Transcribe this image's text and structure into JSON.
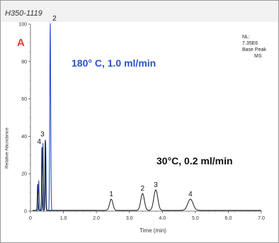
{
  "figure_id": "H350-1119",
  "panel_letter": "A",
  "info": {
    "nl_label": "NL:",
    "nl_value": "7.35E6",
    "peak_type": "Base Peak",
    "detector": "MS"
  },
  "conditions": {
    "fast": "180° C, 1.0 ml/min",
    "slow": "30°C, 0.2 ml/min"
  },
  "colors": {
    "fast": "#2a52c8",
    "slow": "#1a1a1a",
    "panel": "#e23a2a"
  },
  "chart_data": {
    "type": "line",
    "xlabel": "Time (min)",
    "ylabel": "Relative Abundance",
    "xlim": [
      0,
      7.0
    ],
    "ylim": [
      0,
      100
    ],
    "x_ticks": [
      "0",
      "1.0",
      "2.0",
      "3.0",
      "4.0",
      "5.0",
      "6.0",
      "7.0"
    ],
    "y_ticks": [
      "0",
      "20",
      "40",
      "60",
      "80",
      "100"
    ],
    "grid": false,
    "series": [
      {
        "condition": "180° C, 1.0 ml/min",
        "color": "#2a52c8",
        "peaks": [
          {
            "label": "",
            "time": 0.25,
            "height": 16,
            "width": 0.012
          },
          {
            "label": "",
            "time": 0.38,
            "height": 36,
            "width": 0.012
          },
          {
            "label": "",
            "time": 0.46,
            "height": 37,
            "width": 0.012
          },
          {
            "label": "2",
            "time": 0.6,
            "height": 100,
            "width": 0.014
          }
        ]
      },
      {
        "condition": "30°C, 0.2 ml/min",
        "color": "#1a1a1a",
        "peaks": [
          {
            "label": "",
            "time": 0.22,
            "height": 14,
            "width": 0.012
          },
          {
            "label": "4",
            "time": 0.35,
            "height": 34,
            "width": 0.012
          },
          {
            "label": "3",
            "time": 0.45,
            "height": 38,
            "width": 0.012
          },
          {
            "label": "1",
            "time": 2.45,
            "height": 6,
            "width": 0.05
          },
          {
            "label": "2",
            "time": 3.4,
            "height": 9,
            "width": 0.055
          },
          {
            "label": "3",
            "time": 3.8,
            "height": 11,
            "width": 0.06
          },
          {
            "label": "4",
            "time": 4.85,
            "height": 6,
            "width": 0.08
          }
        ]
      }
    ]
  }
}
